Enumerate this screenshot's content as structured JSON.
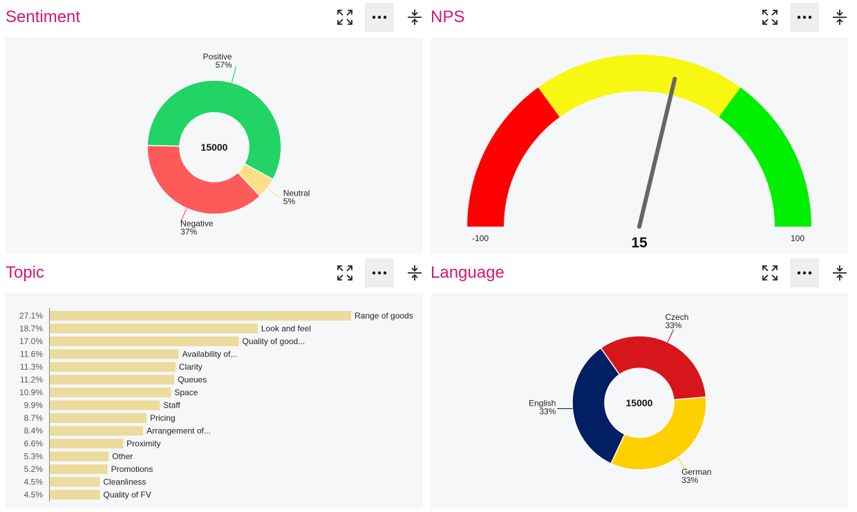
{
  "panels": {
    "sentiment": {
      "title": "Sentiment"
    },
    "nps": {
      "title": "NPS"
    },
    "topic": {
      "title": "Topic"
    },
    "language": {
      "title": "Language"
    }
  },
  "icons": {
    "expand": "expand-icon",
    "more": "more-icon",
    "collapse": "collapse-icon"
  },
  "colors": {
    "title": "#d6176f",
    "positive": "#22d465",
    "neutral": "#ffde88",
    "negative": "#ff5a5a",
    "gauge_red": "#ff0000",
    "gauge_yellow": "#f7f711",
    "gauge_green": "#00ee00",
    "needle": "#666666",
    "bar": "#ebdb9c",
    "czech": "#d7161c",
    "german": "#ffd000",
    "english": "#021f64"
  },
  "chart_data": [
    {
      "type": "pie",
      "name": "sentiment",
      "center_label": "15000",
      "slices": [
        {
          "label": "Positive",
          "value": 57,
          "value_label": "57%",
          "color": "#22d465"
        },
        {
          "label": "Neutral",
          "value": 5,
          "value_label": "5%",
          "color": "#ffde88"
        },
        {
          "label": "Negative",
          "value": 37,
          "value_label": "37%",
          "color": "#ff5a5a"
        }
      ]
    },
    {
      "type": "gauge",
      "name": "nps",
      "min": -100,
      "max": 100,
      "value": 15,
      "min_label": "-100",
      "max_label": "100",
      "value_label": "15",
      "bands": [
        {
          "from": -100,
          "to": -40,
          "color": "#ff0000"
        },
        {
          "from": -40,
          "to": 40,
          "color": "#f7f711"
        },
        {
          "from": 40,
          "to": 100,
          "color": "#00ee00"
        }
      ]
    },
    {
      "type": "bar",
      "name": "topic",
      "orientation": "horizontal",
      "xlim": [
        0,
        30
      ],
      "categories": [
        "Range of goods",
        "Look and feel",
        "Quality of good...",
        "Availability of...",
        "Clarity",
        "Queues",
        "Space",
        "Staff",
        "Pricing",
        "Arrangement of...",
        "Proximity",
        "Other",
        "Promotions",
        "Cleanliness",
        "Quality of FV"
      ],
      "values": [
        27.1,
        18.7,
        17.0,
        11.6,
        11.3,
        11.2,
        10.9,
        9.9,
        8.7,
        8.4,
        6.6,
        5.3,
        5.2,
        4.5,
        4.5
      ],
      "value_labels": [
        "27.1%",
        "18.7%",
        "17.0%",
        "11.6%",
        "11.3%",
        "11.2%",
        "10.9%",
        "9.9%",
        "8.7%",
        "8.4%",
        "6.6%",
        "5.3%",
        "5.2%",
        "4.5%",
        "4.5%"
      ]
    },
    {
      "type": "pie",
      "name": "language",
      "center_label": "15000",
      "slices": [
        {
          "label": "Czech",
          "value": 33,
          "value_label": "33%",
          "color": "#d7161c"
        },
        {
          "label": "German",
          "value": 33,
          "value_label": "33%",
          "color": "#ffd000"
        },
        {
          "label": "English",
          "value": 33,
          "value_label": "33%",
          "color": "#021f64"
        }
      ]
    }
  ]
}
